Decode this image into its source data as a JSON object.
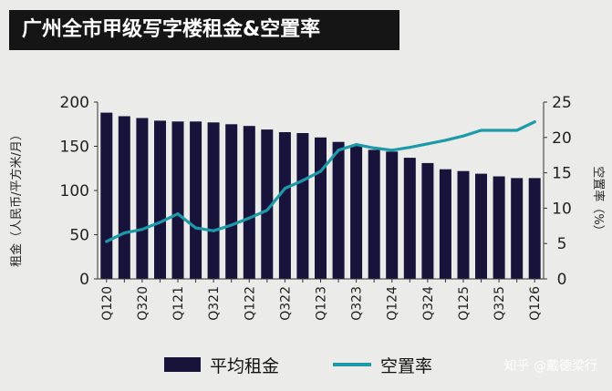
{
  "title": "广州全市甲级写字楼租金&空置率",
  "watermark": "知乎 @戴德梁行",
  "legend": {
    "rent": "平均租金",
    "vacancy": "空置率"
  },
  "colors": {
    "bar": "#17133a",
    "line": "#1d9aaa",
    "title_bg": "#151515",
    "background": "#ebebea"
  },
  "chart_data": {
    "type": "bar+line",
    "title": "广州全市甲级写字楼租金&空置率",
    "ylabel": "租金（人民币/平方米/月）",
    "y2label": "空置率（%）",
    "ylim": [
      0,
      200
    ],
    "y2lim": [
      0,
      25
    ],
    "yticks": [
      0,
      50,
      100,
      150,
      200
    ],
    "y2ticks": [
      0,
      5,
      10,
      15,
      20,
      25
    ],
    "grid": false,
    "legend_position": "bottom",
    "x_tick_labels": [
      "Q120",
      "Q320",
      "Q121",
      "Q321",
      "Q122",
      "Q322",
      "Q123",
      "Q323",
      "Q124",
      "Q324",
      "Q125",
      "Q325",
      "Q126"
    ],
    "categories": [
      "Q120",
      "Q220",
      "Q320",
      "Q420",
      "Q121",
      "Q221",
      "Q321",
      "Q421",
      "Q122",
      "Q222",
      "Q322",
      "Q422",
      "Q123",
      "Q223",
      "Q323",
      "Q423",
      "Q124",
      "Q224",
      "Q324",
      "Q424",
      "Q125",
      "Q225",
      "Q325",
      "Q425",
      "Q126"
    ],
    "series": [
      {
        "name": "平均租金",
        "type": "bar",
        "axis": "left",
        "values": [
          188,
          184,
          182,
          179,
          178,
          178,
          177,
          175,
          173,
          169,
          166,
          165,
          160,
          155,
          151,
          146,
          144,
          137,
          131,
          124,
          122,
          119,
          116,
          114,
          114
        ]
      },
      {
        "name": "空置率",
        "type": "line",
        "axis": "right",
        "values": [
          5.3,
          6.5,
          7.0,
          8.0,
          9.2,
          7.2,
          6.8,
          7.6,
          8.6,
          9.7,
          12.8,
          13.9,
          15.2,
          18.2,
          19.0,
          18.5,
          18.2,
          18.6,
          19.1,
          19.6,
          20.2,
          21.0,
          21.0,
          21.0,
          22.2
        ]
      }
    ]
  }
}
